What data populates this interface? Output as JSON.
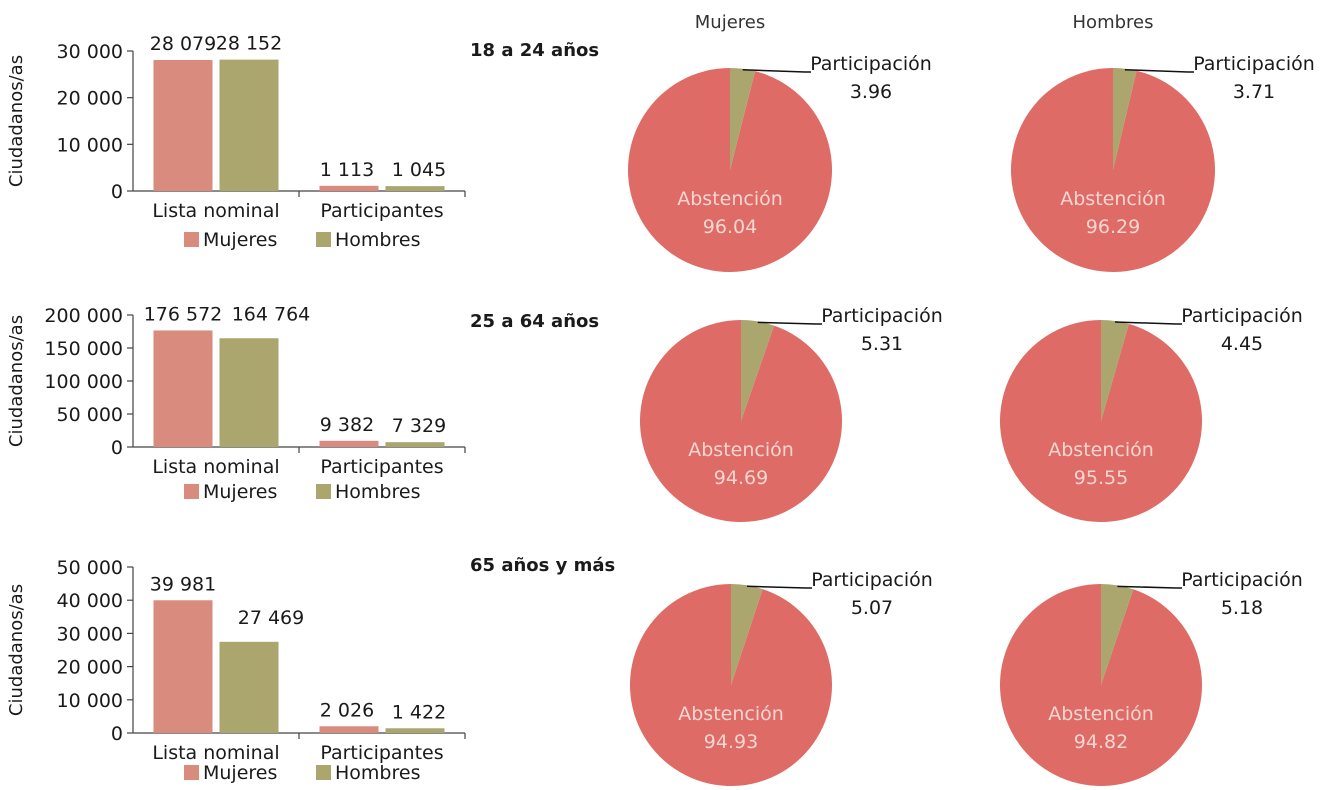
{
  "colors": {
    "mujeres_bar": "#d98b7e",
    "hombres_bar": "#aba66e",
    "abstencion": "#de6b66",
    "participacion": "#aba66e",
    "pie_label": "#f6d6d2"
  },
  "column_headers": {
    "mujeres": "Mujeres",
    "hombres": "Hombres"
  },
  "chart_data": [
    {
      "type": "bar",
      "group": "18 a 24 años",
      "ylabel": "Ciudadanos/as",
      "ylim": [
        0,
        30000
      ],
      "yticks": [
        "0",
        "10 000",
        "20 000",
        "30 000"
      ],
      "categories": [
        "Lista nominal",
        "Participantes"
      ],
      "series": [
        {
          "name": "Mujeres",
          "values": [
            28079,
            1113
          ],
          "labels": [
            "28 079",
            "1 113"
          ]
        },
        {
          "name": "Hombres",
          "values": [
            28152,
            1045
          ],
          "labels": [
            "28 152",
            "1 045"
          ]
        }
      ],
      "legend": "bottom"
    },
    {
      "type": "pie",
      "group": "18 a 24 años",
      "column": "Mujeres",
      "slices": [
        {
          "label": "Participación",
          "value": 3.96,
          "text": "3.96"
        },
        {
          "label": "Abstención",
          "value": 96.04,
          "text": "96.04"
        }
      ]
    },
    {
      "type": "pie",
      "group": "18 a 24 años",
      "column": "Hombres",
      "slices": [
        {
          "label": "Participación",
          "value": 3.71,
          "text": "3.71"
        },
        {
          "label": "Abstención",
          "value": 96.29,
          "text": "96.29"
        }
      ]
    },
    {
      "type": "bar",
      "group": "25 a 64 años",
      "ylabel": "Ciudadanos/as",
      "ylim": [
        0,
        200000
      ],
      "yticks": [
        "0",
        "50 000",
        "100 000",
        "150 000",
        "200 000"
      ],
      "categories": [
        "Lista nominal",
        "Participantes"
      ],
      "series": [
        {
          "name": "Mujeres",
          "values": [
            176572,
            9382
          ],
          "labels": [
            "176 572",
            "9 382"
          ]
        },
        {
          "name": "Hombres",
          "values": [
            164764,
            7329
          ],
          "labels": [
            "164 764",
            "7 329"
          ]
        }
      ],
      "legend": "bottom"
    },
    {
      "type": "pie",
      "group": "25 a 64 años",
      "column": "Mujeres",
      "slices": [
        {
          "label": "Participación",
          "value": 5.31,
          "text": "5.31"
        },
        {
          "label": "Abstención",
          "value": 94.69,
          "text": "94.69"
        }
      ]
    },
    {
      "type": "pie",
      "group": "25 a 64 años",
      "column": "Hombres",
      "slices": [
        {
          "label": "Participación",
          "value": 4.45,
          "text": "4.45"
        },
        {
          "label": "Abstención",
          "value": 95.55,
          "text": "95.55"
        }
      ]
    },
    {
      "type": "bar",
      "group": "65 años y más",
      "ylabel": "Ciudadanos/as",
      "ylim": [
        0,
        50000
      ],
      "yticks": [
        "0",
        "10 000",
        "20 000",
        "30 000",
        "40 000",
        "50 000"
      ],
      "categories": [
        "Lista nominal",
        "Participantes"
      ],
      "series": [
        {
          "name": "Mujeres",
          "values": [
            39981,
            2026
          ],
          "labels": [
            "39 981",
            "2 026"
          ]
        },
        {
          "name": "Hombres",
          "values": [
            27469,
            1422
          ],
          "labels": [
            "27 469",
            "1 422"
          ]
        }
      ],
      "legend": "bottom"
    },
    {
      "type": "pie",
      "group": "65 años y más",
      "column": "Mujeres",
      "slices": [
        {
          "label": "Participación",
          "value": 5.07,
          "text": "5.07"
        },
        {
          "label": "Abstención",
          "value": 94.93,
          "text": "94.93"
        }
      ]
    },
    {
      "type": "pie",
      "group": "65 años y más",
      "column": "Hombres",
      "slices": [
        {
          "label": "Participación",
          "value": 5.18,
          "text": "5.18"
        },
        {
          "label": "Abstención",
          "value": 94.82,
          "text": "94.82"
        }
      ]
    }
  ]
}
